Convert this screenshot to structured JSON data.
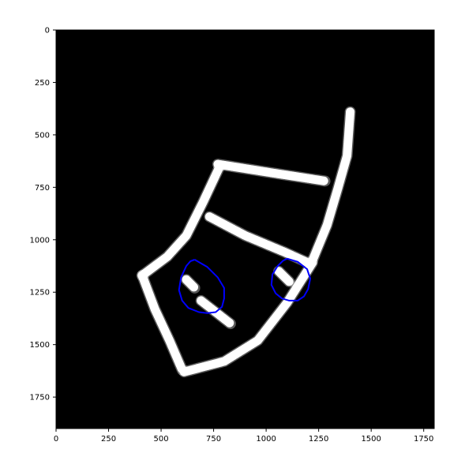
{
  "chart_data": {
    "type": "heatmap",
    "title": "",
    "xlabel": "",
    "ylabel": "",
    "xlim": [
      0,
      1800
    ],
    "ylim": [
      1900,
      0
    ],
    "y_axis_inverted": true,
    "xticks": [
      0,
      250,
      500,
      750,
      1000,
      1250,
      1500,
      1750
    ],
    "yticks": [
      0,
      250,
      500,
      750,
      1000,
      1250,
      1500,
      1750
    ],
    "grid": false,
    "legend": "none",
    "background_color": "#000000",
    "map_color": "#ffffff",
    "map_structure": {
      "description": "occupancy map outline",
      "wall_segments": [
        {
          "name": "right-corridor-upper",
          "points": [
            [
              1400,
              390
            ],
            [
              1385,
              600
            ],
            [
              1340,
              760
            ],
            [
              1290,
              930
            ],
            [
              1220,
              1100
            ]
          ]
        },
        {
          "name": "top-corridor",
          "points": [
            [
              770,
              640
            ],
            [
              1020,
              680
            ],
            [
              1280,
              720
            ]
          ]
        },
        {
          "name": "left-upper-corridor",
          "points": [
            [
              775,
              660
            ],
            [
              700,
              820
            ],
            [
              620,
              980
            ],
            [
              530,
              1080
            ],
            [
              410,
              1170
            ]
          ]
        },
        {
          "name": "middle-corridor",
          "points": [
            [
              730,
              890
            ],
            [
              900,
              980
            ],
            [
              1090,
              1060
            ],
            [
              1200,
              1110
            ]
          ]
        },
        {
          "name": "left-lower-corridor",
          "points": [
            [
              410,
              1170
            ],
            [
              470,
              1330
            ],
            [
              540,
              1480
            ],
            [
              600,
              1620
            ]
          ]
        },
        {
          "name": "bottom-corridor",
          "points": [
            [
              610,
              1630
            ],
            [
              800,
              1580
            ],
            [
              960,
              1480
            ],
            [
              1100,
              1300
            ],
            [
              1220,
              1110
            ]
          ]
        },
        {
          "name": "inner-diagonal-1",
          "points": [
            [
              620,
              1190
            ],
            [
              660,
              1230
            ]
          ]
        },
        {
          "name": "inner-diagonal-2",
          "points": [
            [
              690,
              1290
            ],
            [
              830,
              1400
            ]
          ]
        },
        {
          "name": "inner-stub",
          "points": [
            [
              1060,
              1150
            ],
            [
              1110,
              1200
            ]
          ]
        }
      ]
    },
    "series": [
      {
        "color": "#0000ff",
        "x": [
          660,
          720,
          770,
          800,
          800,
          790,
          760,
          720,
          680,
          630,
          600,
          585,
          595,
          620,
          640,
          660
        ],
        "y": [
          1095,
          1130,
          1180,
          1230,
          1280,
          1320,
          1345,
          1350,
          1345,
          1325,
          1290,
          1240,
          1180,
          1125,
          1102,
          1095
        ]
      },
      {
        "color": "#0000ff",
        "x": [
          1100,
          1150,
          1195,
          1210,
          1200,
          1180,
          1150,
          1110,
          1075,
          1045,
          1025,
          1030,
          1055,
          1080,
          1100
        ],
        "y": [
          1090,
          1105,
          1140,
          1185,
          1235,
          1270,
          1290,
          1290,
          1280,
          1255,
          1215,
          1165,
          1125,
          1100,
          1090
        ]
      }
    ]
  }
}
